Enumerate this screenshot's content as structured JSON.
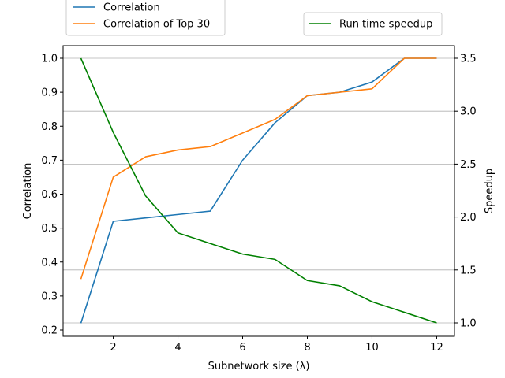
{
  "chart_data": {
    "type": "line",
    "xlabel": "Subnetwork size (λ)",
    "ylabel": "Correlation",
    "y2label": "Speedup",
    "xlim": [
      0.45,
      12.55
    ],
    "ylim": [
      0.2,
      1.0
    ],
    "y2lim": [
      0.95,
      3.6
    ],
    "xticks": [
      "2",
      "4",
      "6",
      "8",
      "10",
      "12"
    ],
    "yticks": [
      "0.2",
      "0.3",
      "0.4",
      "0.5",
      "0.6",
      "0.7",
      "0.8",
      "0.9",
      "1.0"
    ],
    "y2ticks": [
      "1.0",
      "1.5",
      "2.0",
      "2.5",
      "3.0",
      "3.5"
    ],
    "grid": "horizontal lines from right axis",
    "x": [
      1,
      2,
      3,
      4,
      5,
      6,
      7,
      8,
      9,
      10,
      11,
      12
    ],
    "series": [
      {
        "name": "Correlation",
        "axis": "left",
        "color": "#1f77b4",
        "values": [
          0.22,
          0.52,
          0.53,
          0.54,
          0.55,
          0.7,
          0.81,
          0.89,
          0.9,
          0.93,
          1.0,
          1.0
        ]
      },
      {
        "name": "Correlation of Top 30",
        "axis": "left",
        "color": "#ff7f0e",
        "values": [
          0.35,
          0.65,
          0.71,
          0.73,
          0.74,
          0.78,
          0.82,
          0.89,
          0.9,
          0.91,
          1.0,
          1.0
        ]
      },
      {
        "name": "Run time speedup",
        "axis": "right",
        "color": "#008000",
        "values": [
          3.5,
          2.8,
          2.2,
          1.85,
          1.75,
          1.65,
          1.6,
          1.4,
          1.35,
          1.2,
          1.1,
          1.0
        ]
      }
    ],
    "legends": [
      {
        "placement": "top-left, above plot",
        "entries": [
          "Correlation",
          "Correlation of Top 30"
        ]
      },
      {
        "placement": "top-right, above plot",
        "entries": [
          "Run time speedup"
        ]
      }
    ]
  }
}
